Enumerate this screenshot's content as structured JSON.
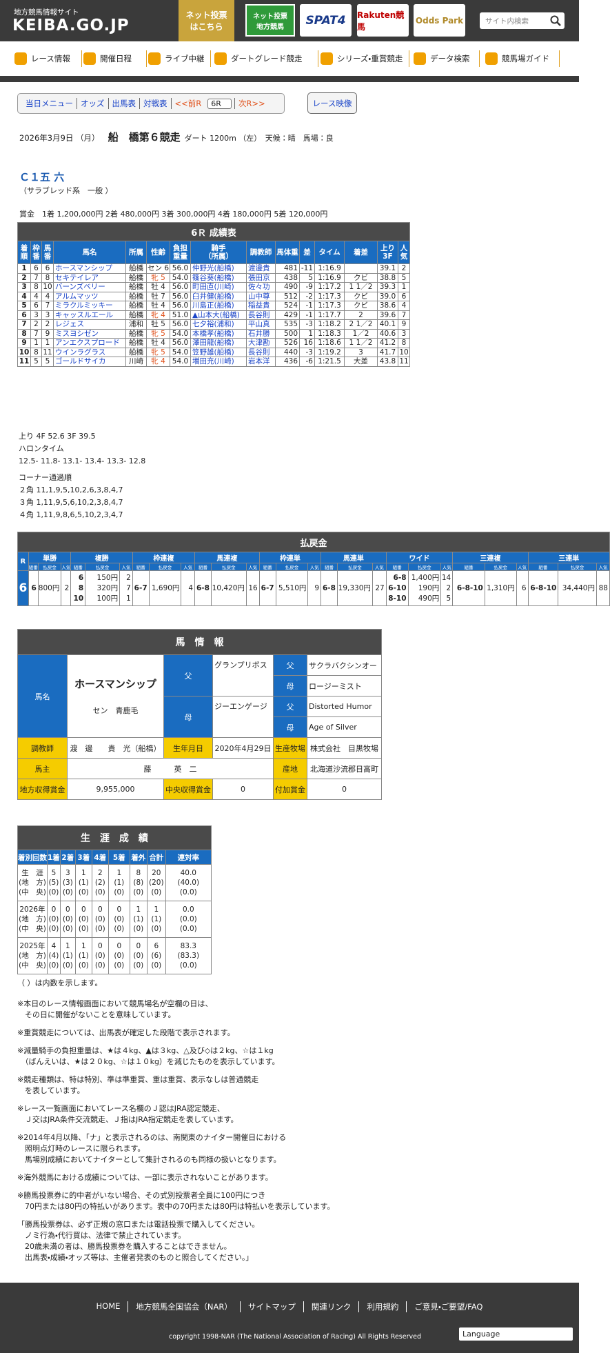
{
  "header": {
    "site_label": "地方競馬情報サイト",
    "logo": "KEIBA.GO.JP",
    "net_bet": [
      "ネット投票",
      "はこちら"
    ],
    "nar_banner": [
      "ネット投票",
      "地方競馬"
    ],
    "banners": [
      "SPAT4",
      "Rakuten競馬",
      "Odds Park"
    ],
    "search_placeholder": "サイト内検索"
  },
  "nav": [
    "レース情報",
    "開催日程",
    "ライブ中継",
    "ダートグレード競走",
    "シリーズ・重賞競走",
    "データ検索",
    "競馬場ガイド"
  ],
  "race_menu": {
    "links": [
      "当日メニュー",
      "オッズ",
      "出馬表",
      "対戦表",
      "<<前R"
    ],
    "race_select": "6R",
    "next": "次R>>",
    "video": "レース映像"
  },
  "race": {
    "date": "2026年3月9日 （月）",
    "course": "船　橋第６競走",
    "distance_info": "ダート 1200m （左）　天候：晴　馬場：良",
    "class_name": "Ｃ１五 六",
    "class_sub": "（サラブレッド系　一般 ）",
    "prize": "賞金　1着 1,200,000円 2着 480,000円 3着 300,000円 4着 180,000円 5着 120,000円"
  },
  "results": {
    "title": "6Ｒ 成績表",
    "headers": [
      [
        "着",
        "順"
      ],
      [
        "枠",
        "番"
      ],
      [
        "馬",
        "番"
      ],
      [
        "馬名"
      ],
      [
        "所属"
      ],
      [
        "性齢"
      ],
      [
        "負担",
        "重量"
      ],
      [
        "騎手",
        "（所属）"
      ],
      [
        "調教師"
      ],
      [
        "馬体重"
      ],
      [
        "差"
      ],
      [
        "タイム"
      ],
      [
        "着差"
      ],
      [
        "上り",
        "3F"
      ],
      [
        "人",
        "気"
      ]
    ],
    "rows": [
      [
        "1",
        "6",
        "6",
        "ホースマンシップ",
        "船橋",
        "セン 6",
        "56.0",
        "仲野光(船橋)",
        "渡邊貴",
        "481",
        "-11",
        "1:16.9",
        null,
        "39.1",
        "2"
      ],
      [
        "2",
        "7",
        "8",
        "セキテイレア",
        "船橋",
        "牝 5",
        "54.0",
        "篠谷葵(船橋)",
        "張田京",
        "438",
        "5",
        "1:16.9",
        "クビ",
        "38.8",
        "5"
      ],
      [
        "3",
        "8",
        "10",
        "バーンズベリー",
        "船橋",
        "牡 4",
        "56.0",
        "町田直(川崎)",
        "佐々功",
        "490",
        "-9",
        "1:17.2",
        "1 1／2",
        "39.3",
        "1"
      ],
      [
        "4",
        "4",
        "4",
        "アルムマッツ",
        "船橋",
        "牡 7",
        "56.0",
        "臼井健(船橋)",
        "山中尊",
        "512",
        "-2",
        "1:17.3",
        "クビ",
        "39.0",
        "6"
      ],
      [
        "5",
        "6",
        "7",
        "ミラクルミッキー",
        "船橋",
        "牡 4",
        "56.0",
        "川島正(船橋)",
        "稲益貴",
        "524",
        "-1",
        "1:17.3",
        "クビ",
        "38.6",
        "4"
      ],
      [
        "6",
        "3",
        "3",
        "キャッスルエール",
        "船橋",
        "牝 4",
        "51.0",
        "▲山本大(船橋)",
        "長谷則",
        "429",
        "-1",
        "1:17.7",
        "2",
        "39.6",
        "7"
      ],
      [
        "7",
        "2",
        "2",
        "レジェス",
        "浦和",
        "牡 5",
        "56.0",
        "七夕裕(浦和)",
        "平山真",
        "535",
        "-3",
        "1:18.2",
        "2 1／2",
        "40.1",
        "9"
      ],
      [
        "8",
        "7",
        "9",
        "ミスヨシゼン",
        "船橋",
        "牝 5",
        "54.0",
        "本橋孝(船橋)",
        "石井勝",
        "500",
        "1",
        "1:18.3",
        "1／2",
        "40.6",
        "3"
      ],
      [
        "9",
        "1",
        "1",
        "アンエクスプロード",
        "船橋",
        "牡 4",
        "56.0",
        "澤田龍(船橋)",
        "大津勘",
        "526",
        "16",
        "1:18.6",
        "1 1／2",
        "41.2",
        "8"
      ],
      [
        "10",
        "8",
        "11",
        "ウインラグラス",
        "船橋",
        "牝 5",
        "54.0",
        "笠野雄(船橋)",
        "長谷則",
        "440",
        "-3",
        "1:19.2",
        "3",
        "41.7",
        "10"
      ],
      [
        "11",
        "5",
        "5",
        "ゴールドサイカ",
        "川崎",
        "牝 4",
        "54.0",
        "増田充(川崎)",
        "岩本洋",
        "436",
        "-6",
        "1:21.5",
        "大差",
        "43.8",
        "11"
      ]
    ]
  },
  "sectionals": {
    "last_furlongs": "上り 4F 52.6 3F 39.5",
    "furlong_title": "ハロンタイム",
    "furlong_times": "12.5- 11.8- 13.1- 13.4- 13.3- 12.8",
    "corner_title": "コーナー通過順",
    "corners": [
      "２角 11,1,9,5,10,2,6,3,8,4,7",
      "３角 1,11,9,5,6,10,2,3,8,4,7",
      "４角 1,11,9,8,6,5,10,2,3,4,7"
    ]
  },
  "payout": {
    "title": "払戻金",
    "race_label": "R",
    "race": "6",
    "sub_headers": [
      "組番",
      "払戻金",
      "人気"
    ],
    "bets": [
      {
        "name": "単勝",
        "entries": [
          [
            "6",
            "800円",
            "2"
          ]
        ]
      },
      {
        "name": "複勝",
        "entries": [
          [
            "6",
            "150円",
            "2"
          ],
          [
            "8",
            "320円",
            "7"
          ],
          [
            "10",
            "100円",
            "1"
          ]
        ]
      },
      {
        "name": "枠連複",
        "entries": [
          [
            "6-7",
            "1,690円",
            "4"
          ]
        ]
      },
      {
        "name": "馬連複",
        "entries": [
          [
            "6-8",
            "10,420円",
            "16"
          ]
        ]
      },
      {
        "name": "枠連単",
        "entries": [
          [
            "6-7",
            "5,510円",
            "9"
          ]
        ]
      },
      {
        "name": "馬連単",
        "entries": [
          [
            "6-8",
            "19,330円",
            "27"
          ]
        ]
      },
      {
        "name": "ワイド",
        "entries": [
          [
            "6-8",
            "1,400円",
            "14"
          ],
          [
            "6-10",
            "190円",
            "2"
          ],
          [
            "8-10",
            "490円",
            "5"
          ]
        ]
      },
      {
        "name": "三連複",
        "entries": [
          [
            "6-8-10",
            "1,310円",
            "6"
          ]
        ]
      },
      {
        "name": "三連単",
        "entries": [
          [
            "6-8-10",
            "34,440円",
            "88"
          ]
        ]
      }
    ]
  },
  "horse_info": {
    "title": "馬　情　報",
    "name_label": "馬名",
    "name": "ホースマンシップ",
    "sex_color": "セン　青鹿毛",
    "sire_label": "父",
    "sire": "グランプリボス",
    "dam_label": "母",
    "dam": "ジーエンゲージ",
    "pedigree": [
      [
        "父",
        "サクラバクシンオー"
      ],
      [
        "母",
        "ロージーミスト"
      ],
      [
        "父",
        "Distorted Humor"
      ],
      [
        "母",
        "Age of Silver"
      ]
    ],
    "rows": [
      [
        "調教師",
        "渡　邊　　貴　光（船橋）",
        "生年月日",
        "2020年4月29日",
        "生産牧場",
        "株式会社　目黒牧場"
      ],
      [
        "馬主",
        "藤　　　英　二",
        "産地",
        "北海道沙流郡日高町"
      ],
      [
        "地方収得賞金",
        "9,955,000",
        "中央収得賞金",
        "0",
        "付加賞金",
        "0"
      ]
    ]
  },
  "career": {
    "title": "生　涯　成　績",
    "headers": [
      "着別回数",
      "1着",
      "2着",
      "3着",
      "4着",
      "5着",
      "着外",
      "合計",
      "連対率"
    ],
    "rows": [
      {
        "label": [
          "生　涯",
          "(地　方)",
          "(中　央)"
        ],
        "cells": [
          [
            "5",
            "(5)",
            "(0)"
          ],
          [
            "3",
            "(3)",
            "(0)"
          ],
          [
            "1",
            "(1)",
            "(0)"
          ],
          [
            "2",
            "(2)",
            "(0)"
          ],
          [
            "1",
            "(1)",
            "(0)"
          ],
          [
            "8",
            "(8)",
            "(0)"
          ],
          [
            "20",
            "(20)",
            "(0)"
          ],
          [
            "40.0",
            "(40.0)",
            "(0.0)"
          ]
        ]
      },
      {
        "label": [
          "2026年",
          "(地　方)",
          "(中　央)"
        ],
        "cells": [
          [
            "0",
            "(0)",
            "(0)"
          ],
          [
            "0",
            "(0)",
            "(0)"
          ],
          [
            "0",
            "(0)",
            "(0)"
          ],
          [
            "0",
            "(0)",
            "(0)"
          ],
          [
            "0",
            "(0)",
            "(0)"
          ],
          [
            "1",
            "(1)",
            "(0)"
          ],
          [
            "1",
            "(1)",
            "(0)"
          ],
          [
            "0.0",
            "(0.0)",
            "(0.0)"
          ]
        ]
      },
      {
        "label": [
          "2025年",
          "(地　方)",
          "(中　央)"
        ],
        "cells": [
          [
            "4",
            "(4)",
            "(0)"
          ],
          [
            "1",
            "(1)",
            "(0)"
          ],
          [
            "1",
            "(1)",
            "(0)"
          ],
          [
            "0",
            "(0)",
            "(0)"
          ],
          [
            "0",
            "(0)",
            "(0)"
          ],
          [
            "0",
            "(0)",
            "(0)"
          ],
          [
            "6",
            "(6)",
            "(0)"
          ],
          [
            "83.3",
            "(83.3)",
            "(0.0)"
          ]
        ]
      }
    ],
    "note": "（ ）は内数を示します。"
  },
  "notes": [
    [
      "※本日のレース情報画面において競馬場名が空欄の日は、",
      "　その日に開催がないことを意味しています。"
    ],
    [
      "※重賞競走については、出馬表が確定した段階で表示されます。"
    ],
    [
      "※減量騎手の負担重量は、★は４kg、▲は３kg、△及び◇は２kg、☆は１kg",
      "　（ばんえいは、★は２０kg、☆は１０kg）を減じたものを表示しています。"
    ],
    [
      "※競走種類は、特は特別、準は準重賞、重は重賞、表示なしは普通競走",
      "　を表しています。"
    ],
    [
      "※レース一覧画面においてレース名欄のＪ認はJRA認定競走、",
      "　Ｊ交はJRA条件交流競走、Ｊ指はJRA指定競走を表しています。"
    ],
    [
      "※2014年4月以降、「ナ」と表示されるのは、南関東のナイター開催日における",
      "　照明点灯時のレースに限られます。",
      "　馬場別成績においてナイターとして集計されるのも同様の扱いとなります。"
    ],
    [
      "※海外競馬における成績については、一部に表示されないことがあります。"
    ],
    [
      "※勝馬投票券に的中者がいない場合、その式別投票者全員に100円につき",
      "　70円または80円の特払いがあります。表中の70円または80円は特払いを表示しています。"
    ],
    [
      "「勝馬投票券は、必ず正規の窓口または電話投票で購入してください。",
      "　ノミ行為・代行買は、法律で禁止されています。",
      "　20歳未満の者は、勝馬投票券を購入することはできません。",
      "　出馬表・成績・オッズ等は、主催者発表のものと照合してください。」"
    ]
  ],
  "footer": {
    "links": [
      "HOME",
      "地方競馬全国協会（NAR）",
      "サイトマップ",
      "関連リンク",
      "利用規約",
      "ご意見・ご要望/FAQ"
    ],
    "language": "Language",
    "copyright": "copyright 1998-NAR (The National Association of Racing) All Rights Reserved"
  }
}
